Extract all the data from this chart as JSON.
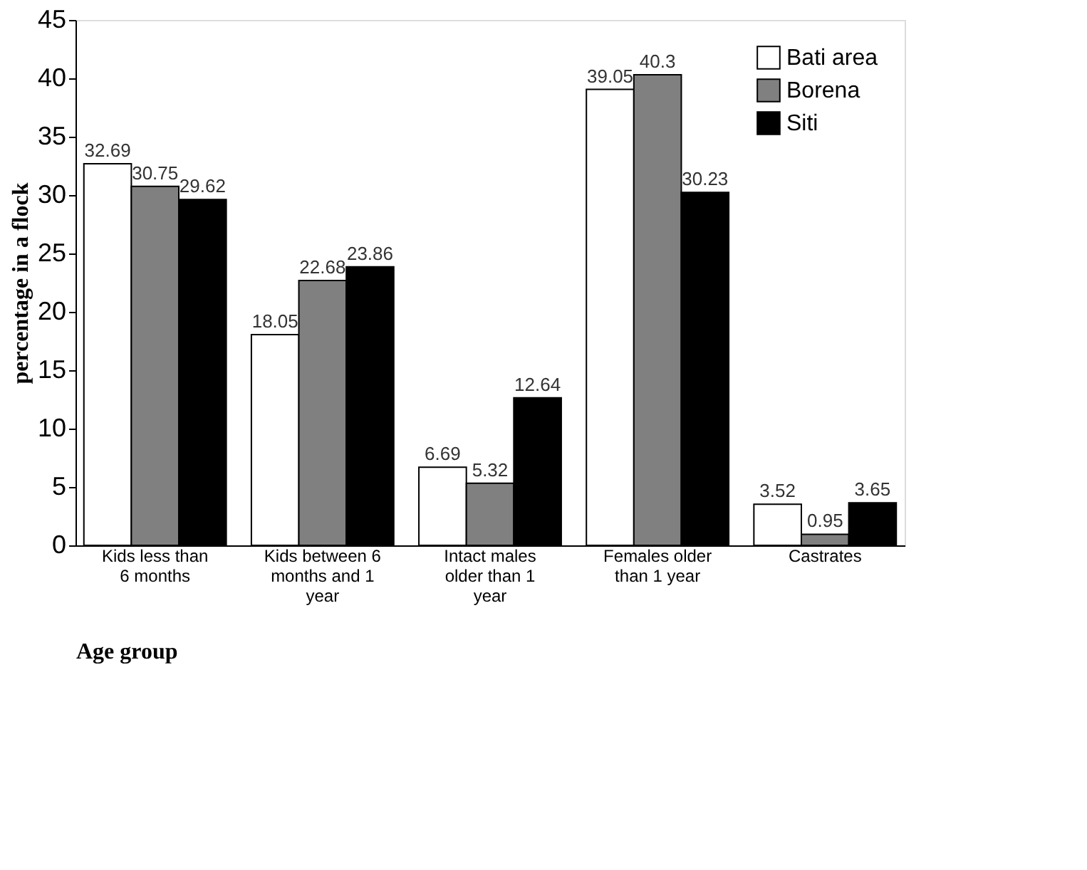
{
  "chart_data": {
    "type": "bar",
    "xlabel": "Age group",
    "ylabel": "percentage in a flock",
    "categories": [
      "Kids less than 6 months",
      "Kids between 6 months and 1 year",
      "Intact males older than 1 year",
      "Females older than 1 year",
      "Castrates"
    ],
    "series": [
      {
        "name": "Bati area",
        "color": "#ffffff",
        "values": [
          32.69,
          18.05,
          6.69,
          39.05,
          3.52
        ]
      },
      {
        "name": "Borena",
        "color": "#808080",
        "values": [
          30.75,
          22.68,
          5.32,
          40.3,
          0.95
        ]
      },
      {
        "name": "Siti",
        "color": "#000000",
        "values": [
          29.62,
          23.86,
          12.64,
          30.23,
          3.65
        ]
      }
    ],
    "ylim": [
      0,
      45
    ],
    "yticks": [
      0,
      5,
      10,
      15,
      20,
      25,
      30,
      35,
      40,
      45
    ],
    "grid": false,
    "legend": "top right",
    "data_labels": true
  }
}
